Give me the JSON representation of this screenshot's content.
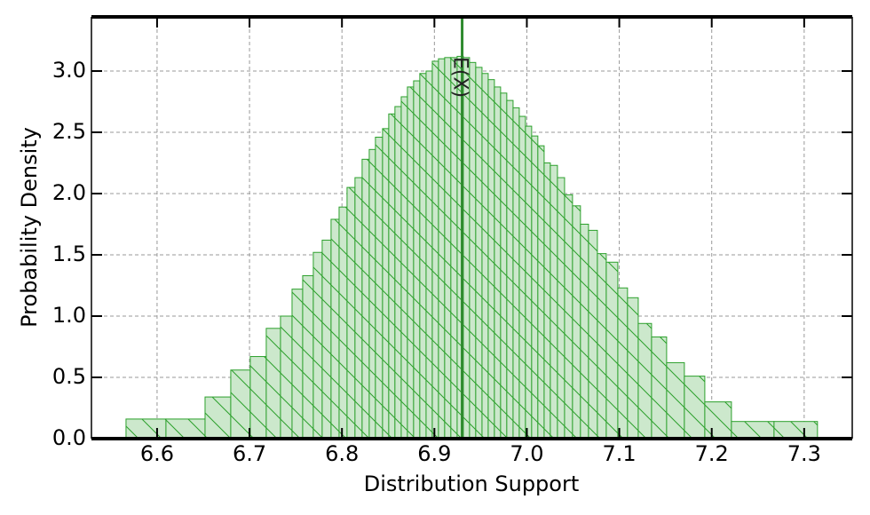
{
  "chart_data": {
    "type": "histogram",
    "xlabel": "Distribution Support",
    "ylabel": "Probability Density",
    "bins": [
      6.5664,
      6.6096,
      6.6519,
      6.6797,
      6.7008,
      6.7181,
      6.7335,
      6.746,
      6.7575,
      6.769,
      6.7786,
      6.7882,
      6.7969,
      6.8055,
      6.8141,
      6.8218,
      6.8295,
      6.8362,
      6.8439,
      6.8506,
      6.8573,
      6.8641,
      6.8708,
      6.8775,
      6.8842,
      6.891,
      6.8977,
      6.9044,
      6.9111,
      6.9178,
      6.9246,
      6.9313,
      6.938,
      6.9447,
      6.9515,
      6.9582,
      6.9649,
      6.9716,
      6.9783,
      6.9851,
      6.9918,
      6.9985,
      7.0052,
      7.0119,
      7.0187,
      7.0254,
      7.0331,
      7.0408,
      7.0494,
      7.058,
      7.0667,
      7.0763,
      7.0859,
      7.0984,
      7.1089,
      7.1205,
      7.1349,
      7.1512,
      7.1704,
      7.1925,
      7.2213,
      7.2674,
      7.3144
    ],
    "values": [
      0.16,
      0.16,
      0.34,
      0.56,
      0.67,
      0.9,
      1.0,
      1.22,
      1.33,
      1.52,
      1.62,
      1.79,
      1.89,
      2.05,
      2.13,
      2.28,
      2.36,
      2.46,
      2.53,
      2.65,
      2.71,
      2.79,
      2.87,
      2.92,
      2.98,
      3.0,
      3.08,
      3.1,
      3.11,
      3.11,
      3.12,
      3.11,
      3.07,
      3.03,
      2.98,
      2.93,
      2.87,
      2.82,
      2.76,
      2.7,
      2.63,
      2.55,
      2.47,
      2.39,
      2.25,
      2.23,
      2.13,
      1.99,
      1.9,
      1.75,
      1.7,
      1.51,
      1.44,
      1.23,
      1.15,
      0.94,
      0.83,
      0.62,
      0.51,
      0.3,
      0.14,
      0.14
    ],
    "color": "#2ca02c",
    "fill": "#cce8cc",
    "hatch": true,
    "mean_line": {
      "value": 6.93,
      "label": "E(X)",
      "color": "#2e8b2e"
    },
    "xlim": [
      6.529,
      7.352
    ],
    "ylim": [
      0,
      3.442
    ],
    "xticks": [
      6.6,
      6.7,
      6.8,
      6.9,
      {
        "value": 7,
        "label": "7.0"
      },
      7.1,
      7.2,
      7.3
    ],
    "yticks": [
      {
        "value": 0,
        "label": "0.0"
      },
      {
        "value": 0.5,
        "label": "0.5"
      },
      {
        "value": 1,
        "label": "1.0"
      },
      {
        "value": 1.5,
        "label": "1.5"
      },
      {
        "value": 2,
        "label": "2.0"
      },
      {
        "value": 2.5,
        "label": "2.5"
      },
      {
        "value": 3,
        "label": "3.0"
      }
    ],
    "grid": true
  }
}
